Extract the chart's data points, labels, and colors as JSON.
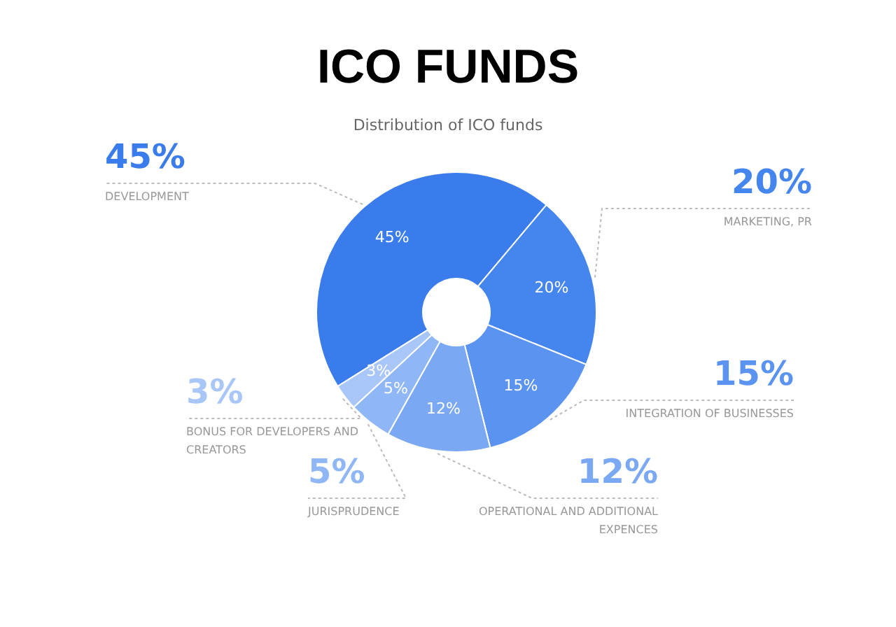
{
  "chart_data": {
    "type": "donut",
    "title": "ICO FUNDS",
    "subtitle": "Distribution of ICO funds",
    "categories": [
      "DEVELOPMENT",
      "MARKETING, PR",
      "INTEGRATION OF BUSINESSES",
      "OPERATIONAL AND ADDITIONAL EXPENCES",
      "JURISPRUDENCE",
      "BONUS FOR DEVELOPERS AND CREATORS"
    ],
    "values": [
      45,
      20,
      15,
      12,
      5,
      3
    ],
    "value_labels": [
      "45%",
      "20%",
      "15%",
      "12%",
      "5%",
      "3%"
    ],
    "colors": [
      "#3a7ceb",
      "#4485ee",
      "#5b94f0",
      "#7aa8f3",
      "#8fb6f5",
      "#a8c6f7"
    ]
  }
}
